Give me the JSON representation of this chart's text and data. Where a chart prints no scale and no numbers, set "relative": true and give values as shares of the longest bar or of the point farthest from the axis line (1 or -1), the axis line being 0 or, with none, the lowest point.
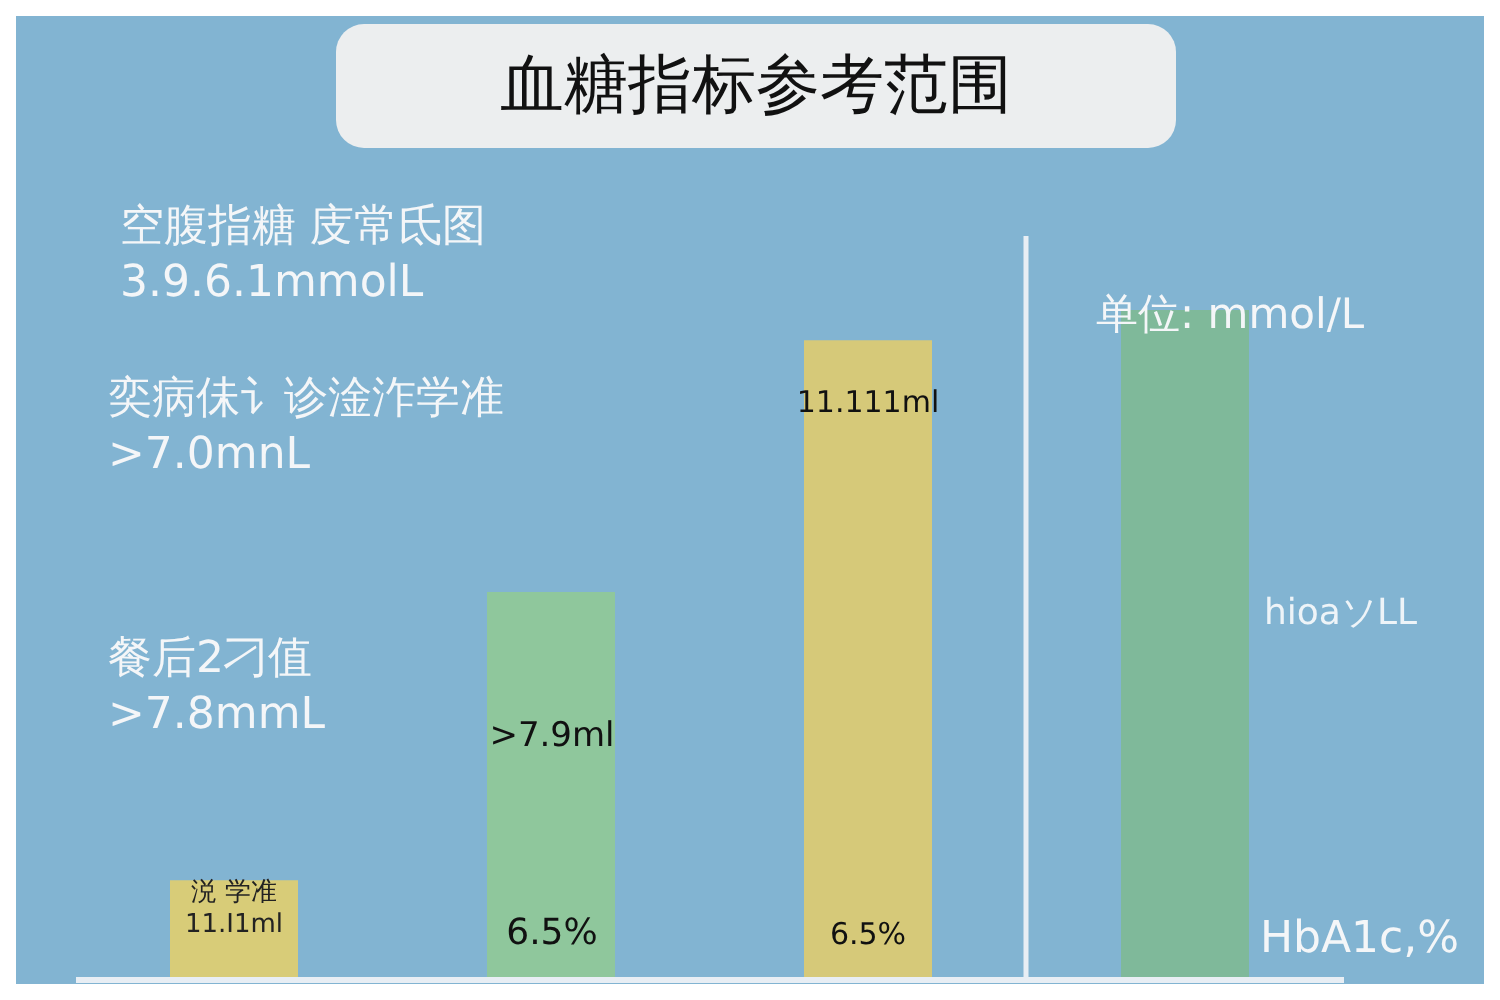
{
  "chart_data": {
    "type": "bar",
    "title": "血糖指标参考范围",
    "relative": true,
    "categories": [
      null,
      null,
      null,
      null
    ],
    "values": [
      0.149,
      0.579,
      0.955,
      1
    ],
    "colors": [
      "#d8cc78",
      "#8fc79c",
      "#d6c979",
      "#7fb99a"
    ],
    "annotations": [
      "空腹指糖 庋常氐图\n3.9.6.1mmolL",
      "奕病佅讠诊淦泎学准\n>7.0mnL",
      "餐后2刁值\n>7.8mmL",
      "涚 学准\n11.I1ml",
      ">7.9ml",
      "6.5%",
      "11.111ml",
      "6.5%",
      "单位: mmol/L",
      "hioaソLL",
      "HbA1c,%"
    ]
  }
}
